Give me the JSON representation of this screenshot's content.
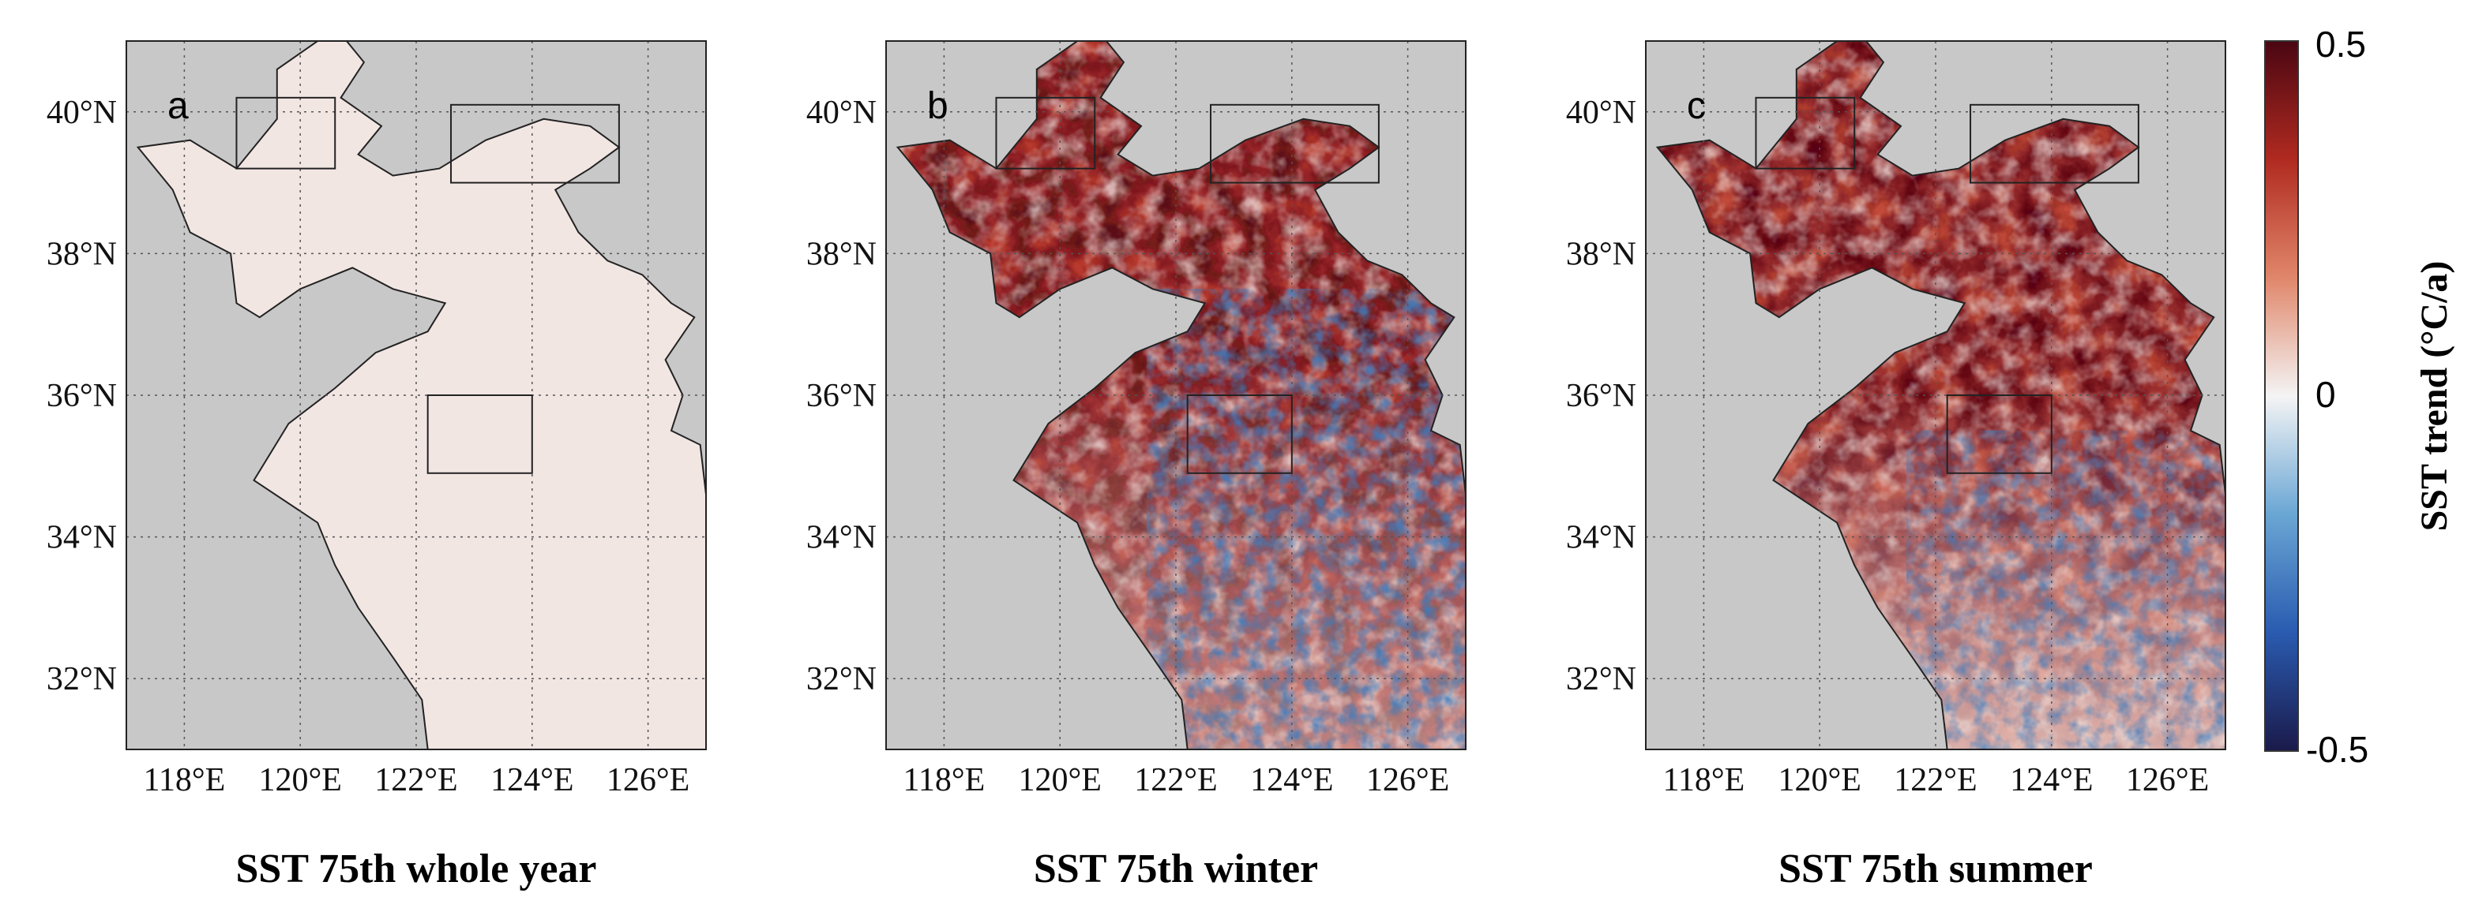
{
  "map": {
    "projection": "lat-lon",
    "lon_range": [
      117,
      127
    ],
    "lat_range": [
      31,
      41
    ],
    "x_ticks": [
      "118°E",
      "120°E",
      "122°E",
      "124°E",
      "126°E"
    ],
    "x_tick_values": [
      118,
      120,
      122,
      124,
      126
    ],
    "y_ticks": [
      "40°N",
      "38°N",
      "36°N",
      "34°N",
      "32°N"
    ],
    "y_tick_values": [
      40,
      38,
      36,
      34,
      32
    ],
    "grid": "dotted",
    "land_color": "#c8c8c8",
    "regions": [
      {
        "lon": [
          118.9,
          120.6
        ],
        "lat": [
          39.2,
          40.2
        ]
      },
      {
        "lon": [
          122.6,
          125.5
        ],
        "lat": [
          39.0,
          40.1
        ]
      },
      {
        "lon": [
          122.2,
          124.0
        ],
        "lat": [
          34.9,
          36.0
        ]
      }
    ]
  },
  "panels": [
    {
      "letter": "a",
      "caption": "SST 75th whole year",
      "variant": "whole"
    },
    {
      "letter": "b",
      "caption": "SST 75th winter",
      "variant": "winter"
    },
    {
      "letter": "c",
      "caption": "SST 75th summer",
      "variant": "summer"
    }
  ],
  "colorbar": {
    "title": "SST trend (°C/a)",
    "max_label": "0.5",
    "mid_label": "0",
    "min_label": "-0.5",
    "range": [
      -0.5,
      0.5
    ],
    "colors": [
      "#1a1a4a",
      "#2a5bb0",
      "#6aa6d4",
      "#f4f4f4",
      "#e0866a",
      "#b02a20",
      "#4a0612"
    ]
  }
}
